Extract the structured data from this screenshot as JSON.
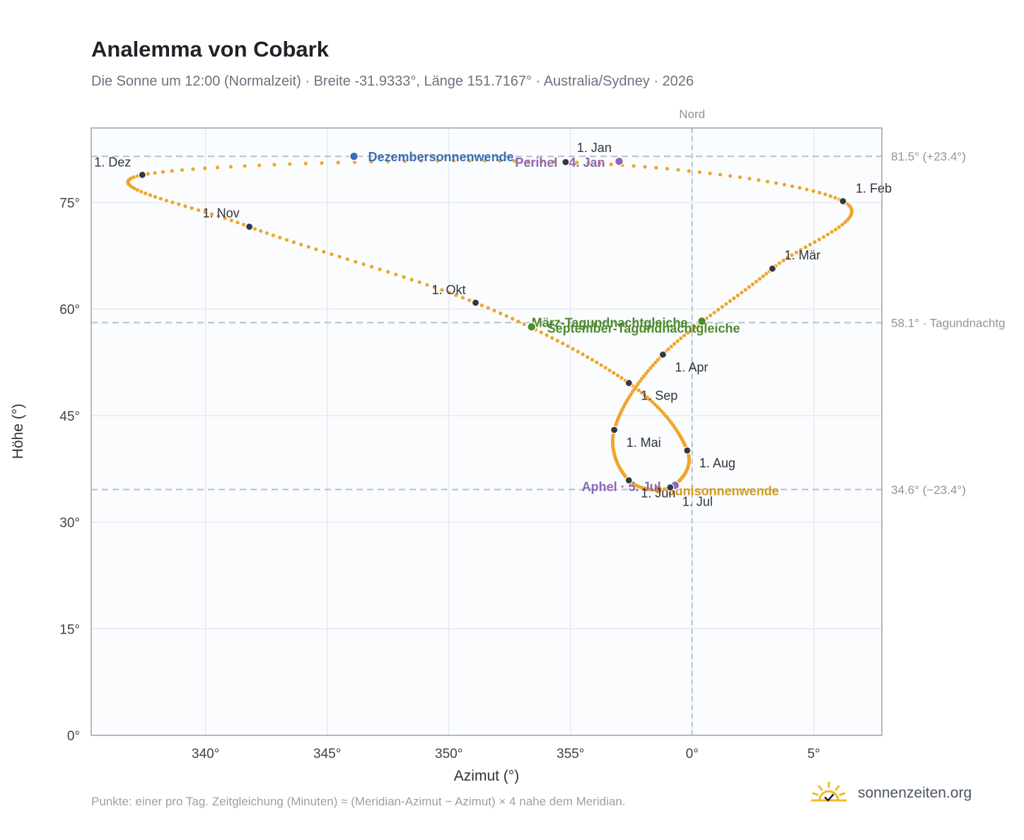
{
  "title": "Analemma von Cobark",
  "subtitle": "Die Sonne um 12:00 (Normalzeit) · Breite -31.9333°, Länge 151.7167° · Australia/Sydney · 2026",
  "footnote": "Punkte: einer pro Tag. Zeitgleichung (Minuten) ≈ (Meridian-Azimut − Azimut) × 4 nahe dem Meridian.",
  "brand": {
    "name": "sonnenzeiten.org",
    "logo_icon": "sun-check-icon"
  },
  "chart_data": {
    "type": "scatter",
    "xlabel": "Azimut (°)",
    "ylabel": "Höhe (°)",
    "xlim": [
      -24.7,
      7.8
    ],
    "ylim": [
      0,
      85.5
    ],
    "x_ticks": [
      -20,
      -15,
      -10,
      -5,
      0,
      5
    ],
    "x_tick_labels": [
      "340°",
      "345°",
      "350°",
      "355°",
      "0°",
      "5°"
    ],
    "y_ticks": [
      0,
      15,
      30,
      45,
      60,
      75
    ],
    "y_tick_labels": [
      "0°",
      "15°",
      "30°",
      "45°",
      "60°",
      "75°"
    ],
    "grid": true,
    "meridian": {
      "x": 0,
      "label": "Nord"
    },
    "reference_lines": [
      {
        "y": 81.5,
        "label": "81.5° (+23.4°)"
      },
      {
        "y": 58.1,
        "label": "58.1° · Tagundnachtg"
      },
      {
        "y": 34.6,
        "label": "34.6° (−23.4°)"
      }
    ],
    "colors": {
      "path": "#f0a52a",
      "month_marker": "#333842",
      "solstice_december": "#3b6fb5",
      "solstice_june": "#d49a1e",
      "equinox": "#4f8a2e",
      "perihelion_aphelion": "#8e67b5",
      "reference_line": "#b8c0cb",
      "grid": "#e6e9ee",
      "plot_background": "#fafcfe",
      "frame": "#9aa4b2"
    },
    "path_keypoints": [
      {
        "day": 1,
        "x": -5.2,
        "y": 80.7
      },
      {
        "day": 32,
        "x": 6.2,
        "y": 75.2
      },
      {
        "day": 60,
        "x": 3.3,
        "y": 65.7
      },
      {
        "day": 91,
        "x": -1.2,
        "y": 53.6
      },
      {
        "day": 121,
        "x": -3.2,
        "y": 43.0
      },
      {
        "day": 152,
        "x": -2.6,
        "y": 35.9
      },
      {
        "day": 182,
        "x": -0.9,
        "y": 34.9
      },
      {
        "day": 213,
        "x": -0.2,
        "y": 40.1
      },
      {
        "day": 244,
        "x": -2.6,
        "y": 49.6
      },
      {
        "day": 274,
        "x": -8.9,
        "y": 60.9
      },
      {
        "day": 305,
        "x": -18.2,
        "y": 71.6
      },
      {
        "day": 335,
        "x": -22.6,
        "y": 78.9
      },
      {
        "day": 366,
        "x": -5.2,
        "y": 80.7
      }
    ],
    "month_markers": [
      {
        "label": "1. Jan",
        "x": -5.2,
        "y": 80.7
      },
      {
        "label": "1. Feb",
        "x": 6.2,
        "y": 75.2
      },
      {
        "label": "1. Mär",
        "x": 3.3,
        "y": 65.7
      },
      {
        "label": "1. Apr",
        "x": -1.2,
        "y": 53.6
      },
      {
        "label": "1. Mai",
        "x": -3.2,
        "y": 43.0
      },
      {
        "label": "1. Jun",
        "x": -2.6,
        "y": 35.9
      },
      {
        "label": "1. Jul",
        "x": -0.9,
        "y": 34.9
      },
      {
        "label": "1. Aug",
        "x": -0.2,
        "y": 40.1
      },
      {
        "label": "1. Sep",
        "x": -2.6,
        "y": 49.6
      },
      {
        "label": "1. Okt",
        "x": -8.9,
        "y": 60.9
      },
      {
        "label": "1. Nov",
        "x": -18.2,
        "y": 71.6
      },
      {
        "label": "1. Dez",
        "x": -22.6,
        "y": 78.9
      }
    ],
    "events": [
      {
        "label": "Dezembersonnenwende",
        "x": -13.9,
        "y": 81.5,
        "color_key": "solstice_december"
      },
      {
        "label": "Perihel · 4. Jan",
        "x": -3.0,
        "y": 80.8,
        "color_key": "perihelion_aphelion"
      },
      {
        "label": "März-Tagundnachtgleiche",
        "x": 0.4,
        "y": 58.3,
        "color_key": "equinox"
      },
      {
        "label": "September-Tagundnachtgleiche",
        "x": -6.6,
        "y": 57.5,
        "color_key": "equinox"
      },
      {
        "label": "Junisonnenwende",
        "x": -1.4,
        "y": 34.6,
        "color_key": "solstice_june"
      },
      {
        "label": "Aphel · 5. Jul",
        "x": -0.7,
        "y": 35.2,
        "color_key": "perihelion_aphelion"
      }
    ]
  }
}
